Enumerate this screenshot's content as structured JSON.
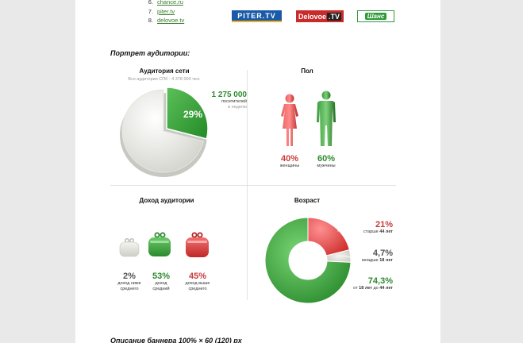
{
  "sites": [
    {
      "num": "6.",
      "name": "chance.ru"
    },
    {
      "num": "7.",
      "name": "piter.tv"
    },
    {
      "num": "8.",
      "name": "delovoe.tv"
    }
  ],
  "logos": {
    "piter": "PITER.TV",
    "delovoe_main": "Delovoe",
    "delovoe_tv": ".TV",
    "shans": "Шанс"
  },
  "portrait_title": "Портрет аудитории:",
  "network": {
    "title": "Аудитория сети",
    "subtitle": "Вся аудитория СПб  -  4 378 000 чел.",
    "value": "1 275 000",
    "caption_1": "посетителей",
    "caption_2": "в неделю",
    "percent": "29%",
    "share": 0.29
  },
  "gender": {
    "title": "Пол",
    "female_pct": "40%",
    "female_label": "женщины",
    "male_pct": "60%",
    "male_label": "мужчины"
  },
  "income": {
    "title": "Доход аудитории",
    "items": [
      {
        "pct": "2%",
        "label_1": "доход ниже",
        "label_2": "среднего",
        "color": "#d8d8d2"
      },
      {
        "pct": "53%",
        "label_1": "доход",
        "label_2": "средний",
        "color": "#3a9a3c"
      },
      {
        "pct": "45%",
        "label_1": "доход выше",
        "label_2": "среднего",
        "color": "#d23c3c"
      }
    ]
  },
  "age": {
    "title": "Возраст",
    "segments": [
      {
        "pct": "21%",
        "label_a": "старше ",
        "label_b": "44 лет",
        "value": 21,
        "color": "#e05050"
      },
      {
        "pct": "4,7%",
        "label_a": "младше ",
        "label_b": "18 лет",
        "value": 4.7,
        "color": "#d8d8d4"
      },
      {
        "pct": "74,3%",
        "label_a": "от ",
        "label_b": "18 лет",
        "label_c": " до ",
        "label_d": "44 лет",
        "value": 74.3,
        "color": "#3aa03c"
      }
    ]
  },
  "banner_title": "Описание баннера 100% × 60 (120) px",
  "colors": {
    "red": "#c93b3b",
    "green": "#2e8a30",
    "link": "#3a7a2a"
  }
}
